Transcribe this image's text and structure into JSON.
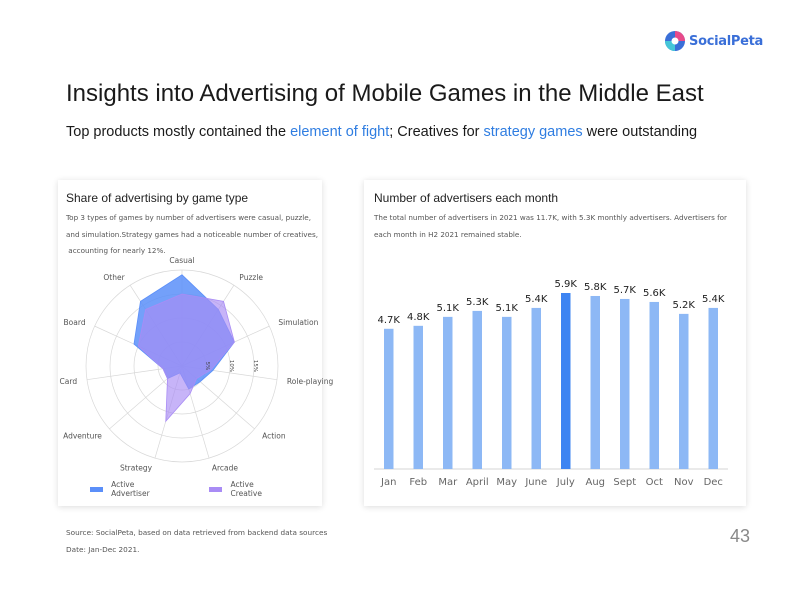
{
  "brand": {
    "name": "SocialPeta",
    "colors": [
      "#e84a8a",
      "#3a6fd8",
      "#45c6d8"
    ]
  },
  "header": {
    "title": "Insights into Advertising of Mobile Games in the Middle East",
    "subtitle_parts": [
      "Top products mostly contained the ",
      "element of fight",
      "; Creatives for ",
      "strategy games",
      " were outstanding"
    ]
  },
  "left_card": {
    "title": "Share of advertising by game type",
    "description_lines": [
      "Top 3 types of games by number of advertisers were casual, puzzle,",
      "and simulation.Strategy games had a noticeable number of creatives,",
      " accounting for nearly 12%."
    ]
  },
  "right_card": {
    "title": "Number of advertisers each month",
    "description_lines": [
      "The total number of advertisers in 2021 was 11.7K, with 5.3K monthly advertisers. Advertisers for",
      "each month in H2 2021 remained stable."
    ]
  },
  "chart_data": [
    {
      "type": "radar",
      "categories": [
        "Casual",
        "Puzzle",
        "Simulation",
        "Role-playing",
        "Action",
        "Arcade",
        "Strategy",
        "Adventure",
        "Card",
        "Board",
        "Other"
      ],
      "radial_ticks": [
        "5%",
        "10%",
        "15%"
      ],
      "rmax": 20,
      "series": [
        {
          "name": "Active Advertiser",
          "color": "#5b8ff9",
          "values": [
            19,
            14,
            12,
            6.5,
            5,
            5,
            1.5,
            4,
            4,
            11,
            16
          ]
        },
        {
          "name": "Active Creative",
          "color": "#a98cf5",
          "values": [
            15,
            16,
            12,
            6,
            4,
            6,
            12,
            4,
            4,
            10,
            14
          ]
        }
      ]
    },
    {
      "type": "bar",
      "categories": [
        "Jan",
        "Feb",
        "Mar",
        "April",
        "May",
        "June",
        "July",
        "Aug",
        "Sept",
        "Oct",
        "Nov",
        "Dec"
      ],
      "values": [
        4.7,
        4.8,
        5.1,
        5.3,
        5.1,
        5.4,
        5.9,
        5.8,
        5.7,
        5.6,
        5.2,
        5.4
      ],
      "labels": [
        "4.7K",
        "4.8K",
        "5.1K",
        "5.3K",
        "5.1K",
        "5.4K",
        "5.9K",
        "5.8K",
        "5.7K",
        "5.6K",
        "5.2K",
        "5.4K"
      ],
      "highlight_index": 6,
      "bar_color": "#8db8f5",
      "highlight_color": "#3d84f2",
      "ylim": [
        0,
        6.5
      ]
    }
  ],
  "footer": {
    "source": "Source: SocialPeta, based on data retrieved from backend data sources",
    "date": "Date: Jan-Dec 2021."
  },
  "page_number": "43"
}
